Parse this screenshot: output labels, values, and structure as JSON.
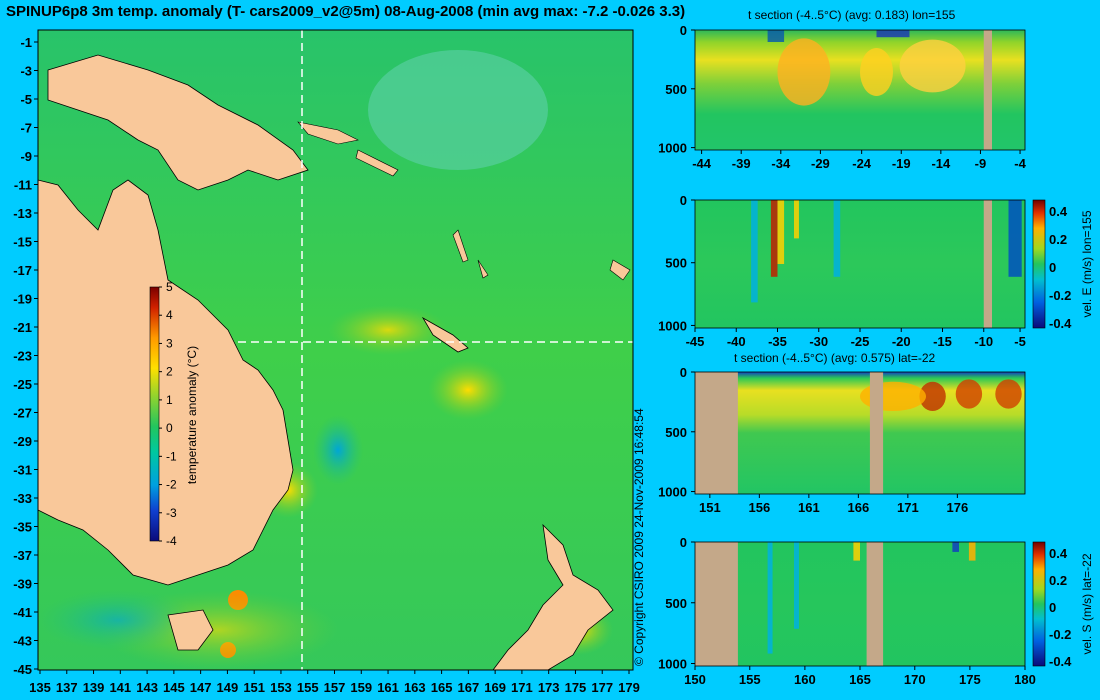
{
  "header": {
    "title": "SPINUP6p8 3m temp. anomaly (T- cars2009_v2@5m) 08-Aug-2008 (min avg max: -7.2 -0.026 3.3)"
  },
  "side_text": "© Copyright CSIRO 2009   24-Nov-2009 16:48:54",
  "colors": {
    "background": "#00ccff",
    "land": "#f9c89a",
    "section_land": "#c4a889",
    "ocean_base": "#22c55e"
  },
  "chart_data": [
    {
      "type": "heatmap",
      "name": "map",
      "x_ticks": [
        "135",
        "137",
        "139",
        "141",
        "143",
        "145",
        "147",
        "149",
        "151",
        "153",
        "155",
        "157",
        "159",
        "161",
        "163",
        "165",
        "167",
        "169",
        "171",
        "173",
        "175",
        "177",
        "179"
      ],
      "y_ticks": [
        "-1",
        "-3",
        "-5",
        "-7",
        "-9",
        "-11",
        "-13",
        "-15",
        "-17",
        "-19",
        "-21",
        "-23",
        "-25",
        "-27",
        "-29",
        "-31",
        "-33",
        "-35",
        "-37",
        "-39",
        "-41",
        "-43",
        "-45"
      ],
      "xlim": [
        135,
        180
      ],
      "ylim": [
        -45,
        0
      ],
      "section_lon": 155,
      "section_lat": -22,
      "colorbar": {
        "label": "temperature anomaly (°C)",
        "ticks": [
          "5",
          "4",
          "3",
          "2",
          "1",
          "0",
          "-1",
          "-2",
          "-3",
          "-4"
        ],
        "range": [
          -4,
          5
        ]
      }
    },
    {
      "type": "heatmap",
      "name": "t-section-lon",
      "title": "t section (-4..5°C) (avg: 0.183) lon=155",
      "x_ticks": [
        "-44",
        "-39",
        "-34",
        "-29",
        "-24",
        "-19",
        "-14",
        "-9",
        "-4"
      ],
      "y_ticks": [
        "0",
        "500",
        "1000"
      ]
    },
    {
      "type": "heatmap",
      "name": "velE-section",
      "x_ticks": [
        "-45",
        "-40",
        "-35",
        "-30",
        "-25",
        "-20",
        "-15",
        "-10",
        "-5"
      ],
      "y_ticks": [
        "0",
        "500",
        "1000"
      ],
      "colorbar": {
        "label": "vel. E (m/s) lon=155",
        "ticks": [
          "0.4",
          "0.2",
          "0",
          "-0.2",
          "-0.4"
        ],
        "range": [
          -0.4,
          0.4
        ]
      }
    },
    {
      "type": "heatmap",
      "name": "t-section-lat",
      "title": "t section (-4..5°C) (avg: 0.575) lat=-22",
      "x_ticks": [
        "151",
        "156",
        "161",
        "166",
        "171",
        "176"
      ],
      "y_ticks": [
        "0",
        "500",
        "1000"
      ]
    },
    {
      "type": "heatmap",
      "name": "velS-section",
      "x_ticks": [
        "150",
        "155",
        "160",
        "165",
        "170",
        "175",
        "180"
      ],
      "y_ticks": [
        "0",
        "500",
        "1000"
      ],
      "colorbar": {
        "label": "vel. S (m/s) lat=-22",
        "ticks": [
          "0.4",
          "0.2",
          "0",
          "-0.2",
          "-0.4"
        ],
        "range": [
          -0.4,
          0.4
        ]
      }
    }
  ]
}
